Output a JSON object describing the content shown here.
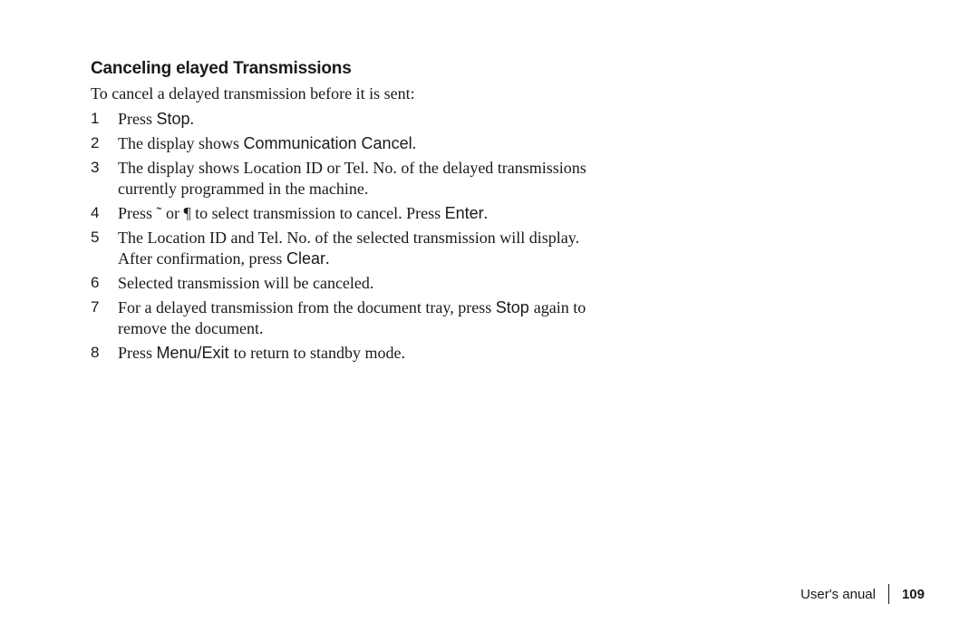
{
  "heading": {
    "part1": "Canceling ",
    "part2": "elayed Transmissions"
  },
  "intro": "To cancel a delayed transmission before it is sent:",
  "steps": [
    {
      "segments": [
        {
          "text": "Press ",
          "serif": true
        },
        {
          "text": "Stop",
          "serif": false
        },
        {
          "text": ".",
          "serif": true
        }
      ]
    },
    {
      "segments": [
        {
          "text": "The display shows ",
          "serif": true
        },
        {
          "text": "Communication Cancel",
          "serif": false
        },
        {
          "text": ".",
          "serif": true
        }
      ]
    },
    {
      "segments": [
        {
          "text": "The display shows Location ID or Tel. No. of the delayed transmissions currently programmed in the machine.",
          "serif": true
        }
      ]
    },
    {
      "segments": [
        {
          "text": "Press  ˜   or  ¶   to select transmission to cancel. Press ",
          "serif": true
        },
        {
          "text": "Enter",
          "serif": false
        },
        {
          "text": ".",
          "serif": true
        }
      ]
    },
    {
      "segments": [
        {
          "text": "The Location ID and Tel. No. of the selected transmission will display.  After confirmation, press ",
          "serif": true
        },
        {
          "text": "Clear",
          "serif": false
        },
        {
          "text": ".",
          "serif": true
        }
      ]
    },
    {
      "segments": [
        {
          "text": "Selected transmission will be canceled.",
          "serif": true
        }
      ]
    },
    {
      "segments": [
        {
          "text": "For a delayed transmission from the document tray, press ",
          "serif": true
        },
        {
          "text": "Stop ",
          "serif": false
        },
        {
          "text": "again to remove the document.",
          "serif": true
        }
      ]
    },
    {
      "segments": [
        {
          "text": "Press ",
          "serif": true
        },
        {
          "text": "Menu/Exit ",
          "serif": false
        },
        {
          "text": " to return to standby mode.",
          "serif": true
        }
      ]
    }
  ],
  "footer": {
    "label_part1": "User's ",
    "label_part2": "anual",
    "page": "109"
  }
}
